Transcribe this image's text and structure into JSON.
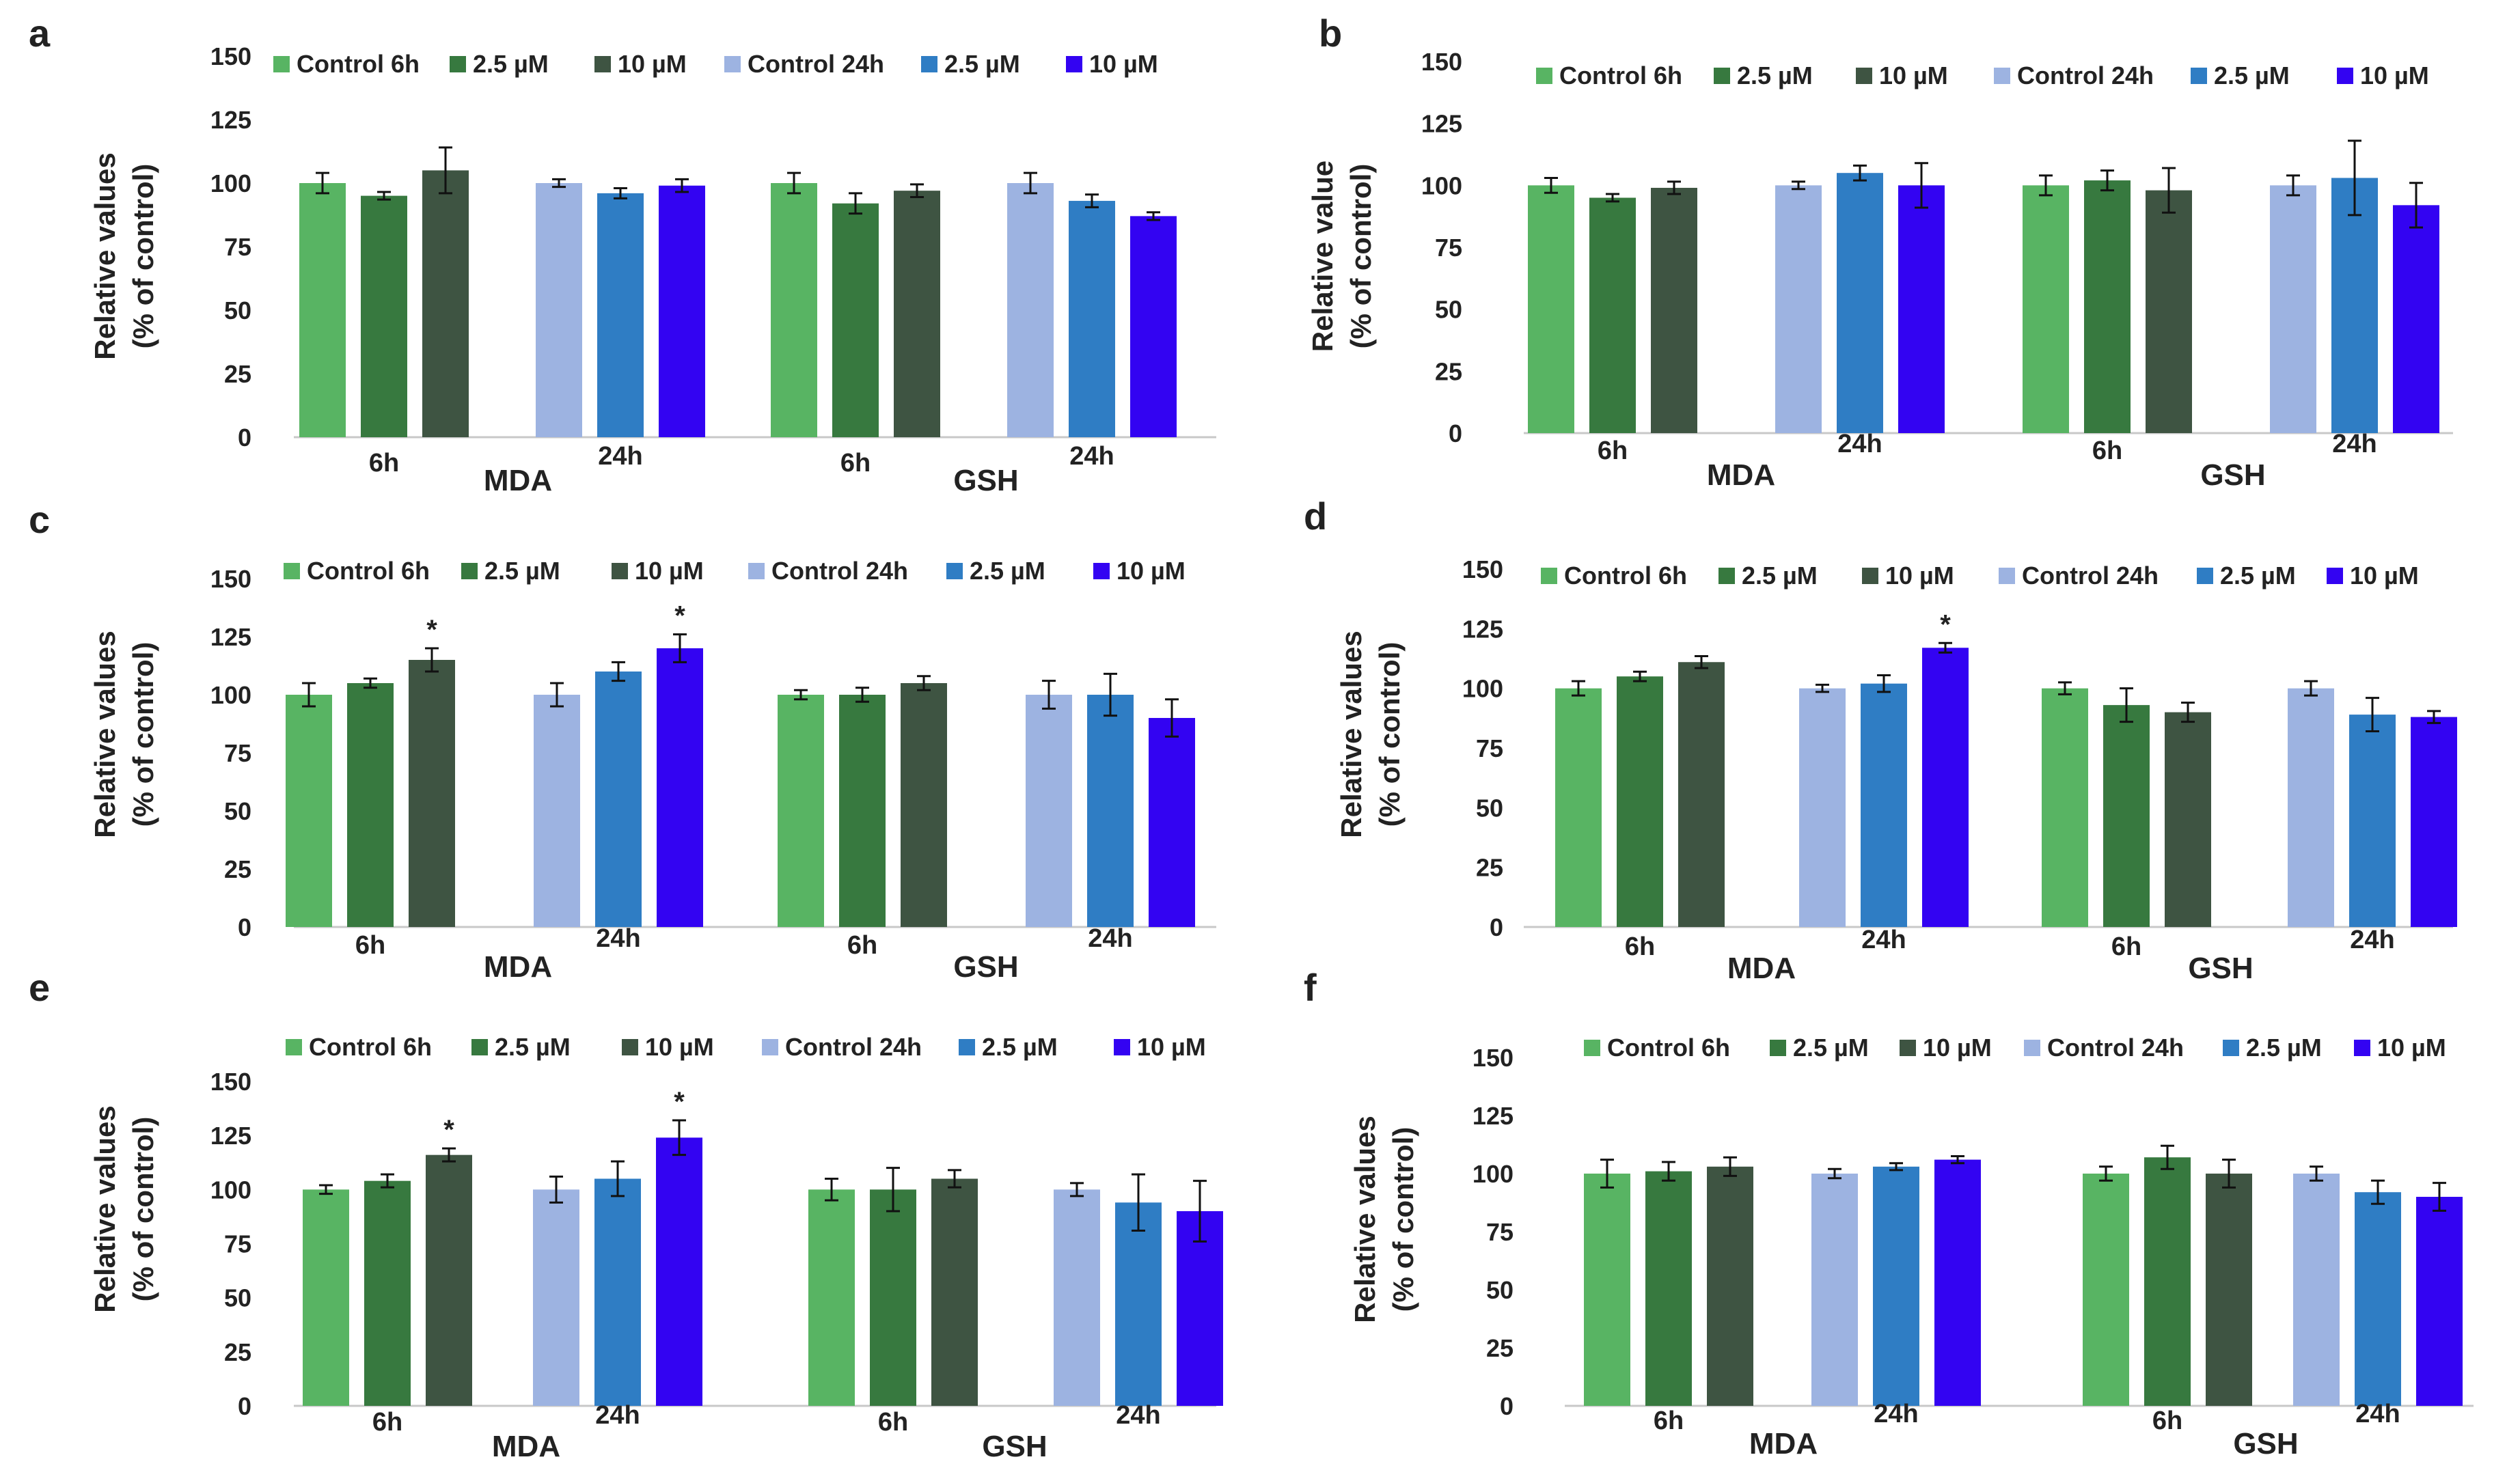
{
  "colors": {
    "control_6h": "#58b463",
    "mid_6h": "#37793f",
    "high_6h": "#3e5442",
    "control_24h": "#9db3e1",
    "mid_24h": "#2f7dc4",
    "high_24h": "#3303f2"
  },
  "chart_data": [
    {
      "panel": "a",
      "type": "bar",
      "ylabel": [
        "Relative values",
        "(% of control)"
      ],
      "ylim": [
        0,
        150
      ],
      "yticks": [
        "0",
        "25",
        "50",
        "75",
        "100",
        "125",
        "150"
      ],
      "legend": [
        "Control 6h",
        "2.5 µM",
        "10 µM",
        "Control 24h",
        "2.5 µM",
        "10 µM"
      ],
      "group_labels": [
        "MDA",
        "GSH"
      ],
      "time_labels": [
        "6h",
        "24h",
        "6h",
        "24h"
      ],
      "values": [
        [
          100,
          95,
          105
        ],
        [
          100,
          96,
          99
        ],
        [
          100,
          92,
          97
        ],
        [
          100,
          93,
          87
        ]
      ],
      "errors": [
        [
          4,
          1.5,
          9
        ],
        [
          1.5,
          2,
          2.5
        ],
        [
          4,
          4,
          2.5
        ],
        [
          4,
          2.5,
          1.5
        ]
      ],
      "significance": [
        [
          "",
          "",
          ""
        ],
        [
          "",
          "",
          ""
        ],
        [
          "",
          "",
          ""
        ],
        [
          "",
          "",
          ""
        ]
      ]
    },
    {
      "panel": "b",
      "type": "bar",
      "ylabel": [
        "Relative value",
        "(% of control)"
      ],
      "ylim": [
        0,
        150
      ],
      "yticks": [
        "0",
        "25",
        "50",
        "75",
        "100",
        "125",
        "150"
      ],
      "legend": [
        "Control 6h",
        "2.5 µM",
        "10 µM",
        "Control 24h",
        "2.5 µM",
        "10 µM"
      ],
      "group_labels": [
        "MDA",
        "GSH"
      ],
      "time_labels": [
        "6h",
        "24h",
        "6h",
        "24h"
      ],
      "values": [
        [
          100,
          95,
          99
        ],
        [
          100,
          105,
          100
        ],
        [
          100,
          102,
          98
        ],
        [
          100,
          103,
          92
        ]
      ],
      "errors": [
        [
          3,
          1.5,
          2.5
        ],
        [
          1.5,
          3,
          9
        ],
        [
          4,
          4,
          9
        ],
        [
          4,
          15,
          9
        ]
      ],
      "significance": [
        [
          "",
          "",
          ""
        ],
        [
          "",
          "",
          ""
        ],
        [
          "",
          "",
          ""
        ],
        [
          "",
          "",
          ""
        ]
      ]
    },
    {
      "panel": "c",
      "type": "bar",
      "ylabel": [
        "Relative values",
        "(% of control)"
      ],
      "ylim": [
        0,
        150
      ],
      "yticks": [
        "0",
        "25",
        "50",
        "75",
        "100",
        "125",
        "150"
      ],
      "legend": [
        "Control 6h",
        "2.5 µM",
        "10 µM",
        "Control 24h",
        "2.5 µM",
        "10 µM"
      ],
      "group_labels": [
        "MDA",
        "GSH"
      ],
      "time_labels": [
        "6h",
        "24h",
        "6h",
        "24h"
      ],
      "values": [
        [
          100,
          105,
          115
        ],
        [
          100,
          110,
          120
        ],
        [
          100,
          100,
          105
        ],
        [
          100,
          100,
          90
        ]
      ],
      "errors": [
        [
          5,
          2,
          5
        ],
        [
          5,
          4,
          6
        ],
        [
          2,
          3,
          3
        ],
        [
          6,
          9,
          8
        ]
      ],
      "significance": [
        [
          "",
          "",
          "*"
        ],
        [
          "",
          "",
          "*"
        ],
        [
          "",
          "",
          ""
        ],
        [
          "",
          "",
          ""
        ]
      ]
    },
    {
      "panel": "d",
      "type": "bar",
      "ylabel": [
        "Relative values",
        "(% of control)"
      ],
      "ylim": [
        0,
        150
      ],
      "yticks": [
        "0",
        "25",
        "50",
        "75",
        "100",
        "125",
        "150"
      ],
      "legend": [
        "Control 6h",
        "2.5 µM",
        "10 µM",
        "Control 24h",
        "2.5 µM",
        "10 µM"
      ],
      "group_labels": [
        "MDA",
        "GSH"
      ],
      "time_labels": [
        "6h",
        "24h",
        "6h",
        "24h"
      ],
      "values": [
        [
          100,
          105,
          111
        ],
        [
          100,
          102,
          117
        ],
        [
          100,
          93,
          90
        ],
        [
          100,
          89,
          88
        ]
      ],
      "errors": [
        [
          3,
          2,
          2.5
        ],
        [
          1.5,
          3.5,
          2
        ],
        [
          2.5,
          7,
          4
        ],
        [
          3,
          7,
          2.5
        ]
      ],
      "significance": [
        [
          "",
          "",
          ""
        ],
        [
          "",
          "",
          "*"
        ],
        [
          "",
          "",
          ""
        ],
        [
          "",
          "",
          ""
        ]
      ]
    },
    {
      "panel": "e",
      "type": "bar",
      "ylabel": [
        "Relative values",
        "(% of control)"
      ],
      "ylim": [
        0,
        150
      ],
      "yticks": [
        "0",
        "25",
        "50",
        "75",
        "100",
        "125",
        "150"
      ],
      "legend": [
        "Control 6h",
        "2.5 µM",
        "10 µM",
        "Control 24h",
        "2.5 µM",
        "10 µM"
      ],
      "group_labels": [
        "MDA",
        "GSH"
      ],
      "time_labels": [
        "6h",
        "24h",
        "6h",
        "24h"
      ],
      "values": [
        [
          100,
          104,
          116
        ],
        [
          100,
          105,
          124
        ],
        [
          100,
          100,
          105
        ],
        [
          100,
          94,
          90
        ]
      ],
      "errors": [
        [
          2,
          3,
          3
        ],
        [
          6,
          8,
          8
        ],
        [
          5,
          10,
          4
        ],
        [
          3,
          13,
          14
        ]
      ],
      "significance": [
        [
          "",
          "",
          "*"
        ],
        [
          "",
          "",
          "*"
        ],
        [
          "",
          "",
          ""
        ],
        [
          "",
          "",
          ""
        ]
      ]
    },
    {
      "panel": "f",
      "type": "bar",
      "ylabel": [
        "Relative values",
        "(% of control)"
      ],
      "ylim": [
        0,
        150
      ],
      "yticks": [
        "0",
        "25",
        "50",
        "75",
        "100",
        "125",
        "150"
      ],
      "legend": [
        "Control 6h",
        "2.5 µM",
        "10 µM",
        "Control 24h",
        "2.5 µM",
        "10 µM"
      ],
      "group_labels": [
        "MDA",
        "GSH"
      ],
      "time_labels": [
        "6h",
        "24h",
        "6h",
        "24h"
      ],
      "values": [
        [
          100,
          101,
          103
        ],
        [
          100,
          103,
          106
        ],
        [
          100,
          107,
          100
        ],
        [
          100,
          92,
          90
        ]
      ],
      "errors": [
        [
          6,
          4,
          4
        ],
        [
          2,
          1.5,
          1.5
        ],
        [
          3,
          5,
          6
        ],
        [
          3,
          5,
          6
        ]
      ],
      "significance": [
        [
          "",
          "",
          ""
        ],
        [
          "",
          "",
          ""
        ],
        [
          "",
          "",
          ""
        ],
        [
          "",
          "",
          ""
        ]
      ]
    }
  ]
}
